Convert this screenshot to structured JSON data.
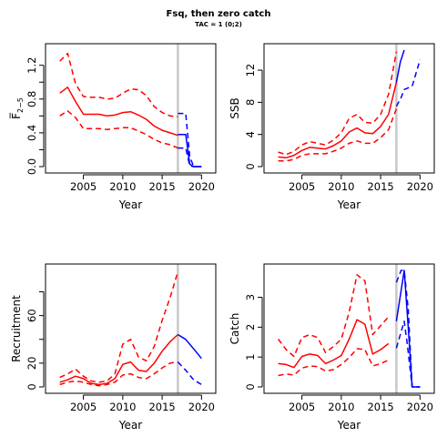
{
  "figure": {
    "title": "Fsq, then zero catch",
    "subtitle": "TAC = 1 (0;2)"
  },
  "colors": {
    "historic": "#ff0000",
    "projection": "#0000ff",
    "marker": "#c8c8c8",
    "axis": "#000000"
  },
  "chart_data": [
    {
      "id": "fbar",
      "type": "line",
      "xlabel": "Year",
      "ylabel": "F̅",
      "ylabel_sub": "2−5",
      "xlim": [
        2001,
        2021
      ],
      "ylim": [
        0,
        1.38
      ],
      "xticks": [
        2005,
        2010,
        2015,
        2020
      ],
      "yticks": [
        0.0,
        0.2,
        0.4,
        0.6,
        0.8,
        1.0,
        1.2
      ],
      "yticklabels": [
        "0.0",
        "",
        "0.4",
        "",
        "0.8",
        "",
        "1.2"
      ],
      "vline": 2017,
      "series": [
        {
          "style": "historic",
          "dash": false,
          "x": [
            2002,
            2003,
            2004,
            2005,
            2006,
            2007,
            2008,
            2009,
            2010,
            2011,
            2012,
            2013,
            2014,
            2015,
            2016,
            2017
          ],
          "y": [
            0.87,
            0.94,
            0.77,
            0.62,
            0.62,
            0.62,
            0.6,
            0.61,
            0.64,
            0.65,
            0.61,
            0.56,
            0.48,
            0.43,
            0.4,
            0.37
          ]
        },
        {
          "style": "historic",
          "dash": true,
          "x": [
            2002,
            2003,
            2004,
            2005,
            2006,
            2007,
            2008,
            2009,
            2010,
            2011,
            2012,
            2013,
            2014,
            2015,
            2016,
            2017
          ],
          "y": [
            1.25,
            1.34,
            0.98,
            0.83,
            0.82,
            0.82,
            0.8,
            0.81,
            0.87,
            0.92,
            0.91,
            0.84,
            0.71,
            0.64,
            0.6,
            0.59
          ]
        },
        {
          "style": "historic",
          "dash": true,
          "x": [
            2002,
            2003,
            2004,
            2005,
            2006,
            2007,
            2008,
            2009,
            2010,
            2011,
            2012,
            2013,
            2014,
            2015,
            2016,
            2017
          ],
          "y": [
            0.6,
            0.66,
            0.58,
            0.45,
            0.45,
            0.45,
            0.44,
            0.45,
            0.46,
            0.46,
            0.42,
            0.38,
            0.32,
            0.28,
            0.26,
            0.22
          ]
        },
        {
          "style": "projection",
          "dash": false,
          "x": [
            2017,
            2018,
            2018.5,
            2019,
            2020
          ],
          "y": [
            0.38,
            0.38,
            0.03,
            0.0,
            0.0
          ]
        },
        {
          "style": "projection",
          "dash": true,
          "x": [
            2017,
            2018,
            2018.5,
            2019,
            2020
          ],
          "y": [
            0.63,
            0.63,
            0.12,
            0.0,
            0.0
          ]
        },
        {
          "style": "projection",
          "dash": true,
          "x": [
            2017,
            2018,
            2018.5,
            2019,
            2020
          ],
          "y": [
            0.22,
            0.22,
            0.01,
            0.0,
            0.0
          ]
        }
      ]
    },
    {
      "id": "ssb",
      "type": "line",
      "xlabel": "Year",
      "ylabel": "SSB",
      "xlim": [
        2001,
        2021
      ],
      "ylim": [
        0,
        14.5
      ],
      "xticks": [
        2005,
        2010,
        2015,
        2020
      ],
      "yticks": [
        0,
        4,
        8,
        12
      ],
      "yticklabels": [
        "0",
        "4",
        "8",
        "12"
      ],
      "vline": 2017,
      "series": [
        {
          "style": "historic",
          "dash": false,
          "x": [
            2002,
            2003,
            2004,
            2005,
            2006,
            2007,
            2008,
            2009,
            2010,
            2011,
            2012,
            2013,
            2014,
            2015,
            2016,
            2017
          ],
          "y": [
            1.2,
            1.1,
            1.4,
            2.0,
            2.4,
            2.3,
            2.2,
            2.6,
            3.2,
            4.3,
            4.8,
            4.2,
            4.1,
            5.0,
            6.5,
            10.5
          ]
        },
        {
          "style": "historic",
          "dash": true,
          "x": [
            2002,
            2003,
            2004,
            2005,
            2006,
            2007,
            2008,
            2009,
            2010,
            2011,
            2012,
            2013,
            2014,
            2015,
            2016,
            2017
          ],
          "y": [
            1.8,
            1.5,
            1.9,
            2.7,
            3.1,
            2.9,
            2.7,
            3.3,
            4.2,
            6.0,
            6.5,
            5.5,
            5.4,
            6.5,
            9.0,
            14.3
          ]
        },
        {
          "style": "historic",
          "dash": true,
          "x": [
            2002,
            2003,
            2004,
            2005,
            2006,
            2007,
            2008,
            2009,
            2010,
            2011,
            2012,
            2013,
            2014,
            2015,
            2016,
            2017
          ],
          "y": [
            0.7,
            0.7,
            0.9,
            1.4,
            1.6,
            1.6,
            1.6,
            1.9,
            2.3,
            2.9,
            3.2,
            2.9,
            2.9,
            3.6,
            4.6,
            7.2
          ]
        },
        {
          "style": "projection",
          "dash": false,
          "x": [
            2017,
            2017.5,
            2018
          ],
          "y": [
            10.5,
            13.0,
            14.5
          ]
        },
        {
          "style": "projection",
          "dash": true,
          "x": [
            2017,
            2017.6,
            2018,
            2019,
            2020
          ],
          "y": [
            7.5,
            8.6,
            9.6,
            10.0,
            13.3
          ]
        }
      ]
    },
    {
      "id": "recruitment",
      "type": "line",
      "xlabel": "Year",
      "ylabel": "Recruitment",
      "xlim": [
        2001,
        2021
      ],
      "ylim": [
        0,
        98
      ],
      "xticks": [
        2005,
        2010,
        2015,
        2020
      ],
      "yticks": [
        0,
        20,
        40,
        60,
        80
      ],
      "yticklabels": [
        "0",
        "20",
        "",
        "60",
        ""
      ],
      "vline": 2017,
      "series": [
        {
          "style": "historic",
          "dash": false,
          "x": [
            2002,
            2003,
            2004,
            2005,
            2006,
            2007,
            2008,
            2009,
            2010,
            2011,
            2012,
            2013,
            2014,
            2015,
            2016,
            2017
          ],
          "y": [
            4,
            6,
            9,
            7,
            3,
            2,
            3,
            7,
            19,
            21,
            14,
            13,
            20,
            30,
            38,
            44
          ]
        },
        {
          "style": "historic",
          "dash": true,
          "x": [
            2002,
            2003,
            2004,
            2005,
            2006,
            2007,
            2008,
            2009,
            2010,
            2011,
            2012,
            2013,
            2014,
            2015,
            2016,
            2017
          ],
          "y": [
            8,
            11,
            15,
            9,
            5,
            4,
            5,
            11,
            36,
            40,
            25,
            22,
            34,
            56,
            75,
            97
          ]
        },
        {
          "style": "historic",
          "dash": true,
          "x": [
            2002,
            2003,
            2004,
            2005,
            2006,
            2007,
            2008,
            2009,
            2010,
            2011,
            2012,
            2013,
            2014,
            2015,
            2016,
            2017
          ],
          "y": [
            2,
            4,
            5,
            4,
            2,
            1,
            2,
            4,
            10,
            11,
            8,
            7,
            11,
            16,
            20,
            21
          ]
        },
        {
          "style": "projection",
          "dash": false,
          "x": [
            2017,
            2018,
            2019,
            2020
          ],
          "y": [
            44,
            40,
            32,
            24
          ]
        },
        {
          "style": "projection",
          "dash": true,
          "x": [
            2017,
            2018,
            2019,
            2020
          ],
          "y": [
            21,
            14,
            6,
            2
          ]
        }
      ]
    },
    {
      "id": "catch",
      "type": "line",
      "xlabel": "Year",
      "ylabel": "Catch",
      "xlim": [
        2001,
        2021
      ],
      "ylim": [
        0,
        3.9
      ],
      "xticks": [
        2005,
        2010,
        2015,
        2020
      ],
      "yticks": [
        0,
        1,
        2,
        3
      ],
      "yticklabels": [
        "0",
        "1",
        "2",
        "3"
      ],
      "vline": 2017,
      "series": [
        {
          "style": "historic",
          "dash": false,
          "x": [
            2002,
            2003,
            2004,
            2005,
            2006,
            2007,
            2008,
            2009,
            2010,
            2011,
            2012,
            2013,
            2014,
            2015,
            2016
          ],
          "y": [
            0.78,
            0.75,
            0.65,
            1.02,
            1.1,
            1.05,
            0.78,
            0.9,
            1.05,
            1.6,
            2.25,
            2.1,
            1.1,
            1.25,
            1.45
          ]
        },
        {
          "style": "historic",
          "dash": true,
          "x": [
            2002,
            2003,
            2004,
            2005,
            2006,
            2007,
            2008,
            2009,
            2010,
            2011,
            2012,
            2013,
            2014,
            2015,
            2016
          ],
          "y": [
            1.6,
            1.25,
            1.02,
            1.65,
            1.75,
            1.65,
            1.15,
            1.35,
            1.6,
            2.5,
            3.75,
            3.55,
            1.75,
            2.05,
            2.35
          ]
        },
        {
          "style": "historic",
          "dash": true,
          "x": [
            2002,
            2003,
            2004,
            2005,
            2006,
            2007,
            2008,
            2009,
            2010,
            2011,
            2012,
            2013,
            2014,
            2015,
            2016
          ],
          "y": [
            0.38,
            0.43,
            0.4,
            0.63,
            0.7,
            0.68,
            0.53,
            0.58,
            0.75,
            0.98,
            1.28,
            1.25,
            0.7,
            0.78,
            0.9
          ]
        },
        {
          "style": "projection",
          "dash": false,
          "x": [
            2017,
            2018,
            2018.5,
            2019,
            2020
          ],
          "y": [
            2.2,
            3.9,
            2.0,
            0.0,
            0.0
          ]
        },
        {
          "style": "projection",
          "dash": true,
          "x": [
            2017,
            2017.6,
            2018,
            2018.5,
            2019,
            2020
          ],
          "y": [
            3.5,
            3.9,
            3.9,
            2.6,
            0.0,
            0.0
          ]
        },
        {
          "style": "projection",
          "dash": true,
          "x": [
            2017,
            2018,
            2018.4,
            2019,
            2020
          ],
          "y": [
            1.3,
            2.2,
            1.4,
            0.0,
            0.0
          ]
        }
      ]
    }
  ]
}
